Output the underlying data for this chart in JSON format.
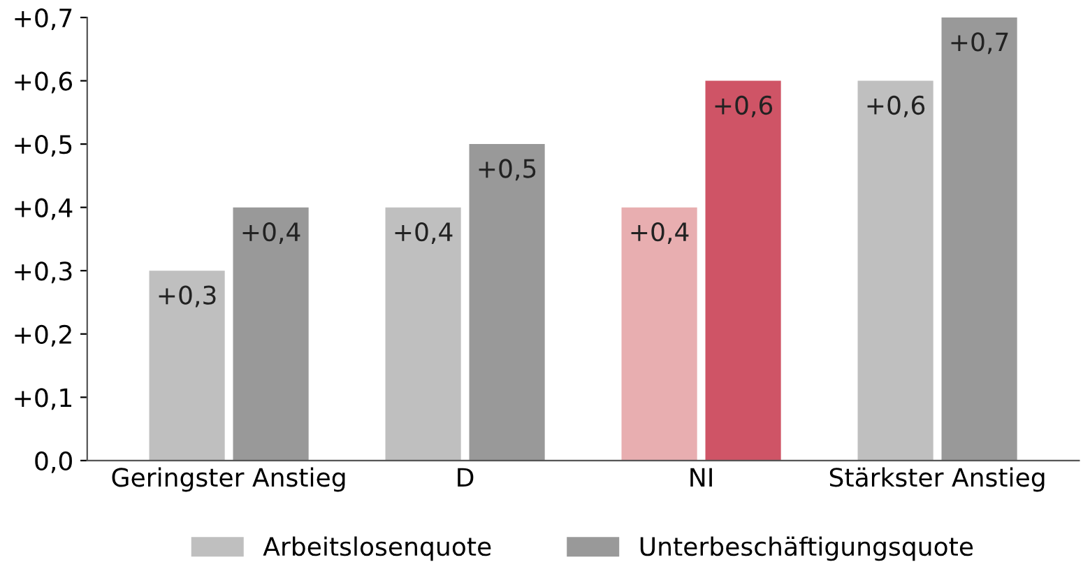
{
  "chart_data": {
    "type": "bar",
    "categories": [
      "Geringster Anstieg",
      "D",
      "NI",
      "Stärkster Anstieg"
    ],
    "series": [
      {
        "name": "Arbeitslosenquote",
        "color": "#bfbfbf",
        "colors": [
          "#bfbfbf",
          "#bfbfbf",
          "#e8aeb0",
          "#bfbfbf"
        ],
        "values": [
          0.3,
          0.4,
          0.4,
          0.6
        ],
        "value_labels": [
          "+0,3",
          "+0,4",
          "+0,4",
          "+0,6"
        ]
      },
      {
        "name": "Unterbeschäftigungsquote",
        "color": "#999999",
        "colors": [
          "#999999",
          "#999999",
          "#cf5466",
          "#999999"
        ],
        "values": [
          0.4,
          0.5,
          0.6,
          0.7
        ],
        "value_labels": [
          "+0,4",
          "+0,5",
          "+0,6",
          "+0,7"
        ]
      }
    ],
    "ylim": [
      0,
      0.7
    ],
    "yticks": [
      {
        "value": 0,
        "label": "0,0"
      },
      {
        "value": 0.1,
        "label": "+0,1"
      },
      {
        "value": 0.2,
        "label": "+0,2"
      },
      {
        "value": 0.3,
        "label": "+0,3"
      },
      {
        "value": 0.4,
        "label": "+0,4"
      },
      {
        "value": 0.5,
        "label": "+0,5"
      },
      {
        "value": 0.6,
        "label": "+0,6"
      },
      {
        "value": 0.7,
        "label": "+0,7"
      }
    ],
    "grid": false,
    "legend": "bottom"
  }
}
